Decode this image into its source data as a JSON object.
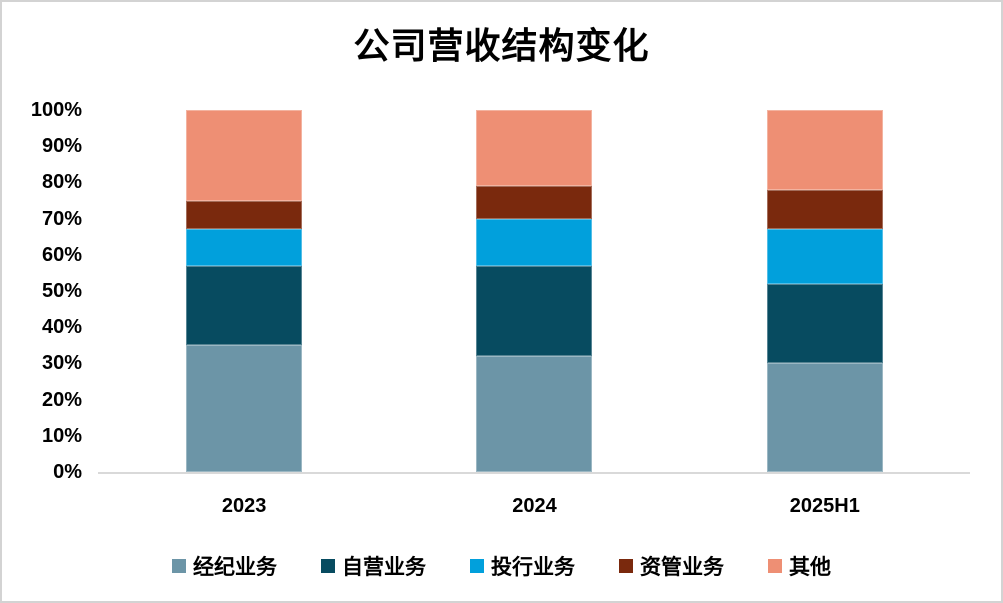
{
  "chart_data": {
    "type": "bar",
    "stacked": true,
    "percent_stacked": true,
    "title": "公司营收结构变化",
    "categories": [
      "2023",
      "2024",
      "2025H1"
    ],
    "series": [
      {
        "name": "经纪业务",
        "color": "#6C95A7",
        "values": [
          35,
          32,
          30
        ]
      },
      {
        "name": "自营业务",
        "color": "#074B60",
        "values": [
          22,
          25,
          22
        ]
      },
      {
        "name": "投行业务",
        "color": "#01A0DC",
        "values": [
          10,
          13,
          15
        ]
      },
      {
        "name": "资管业务",
        "color": "#7A290D",
        "values": [
          8,
          9,
          11
        ]
      },
      {
        "name": "其他",
        "color": "#EE8F74",
        "values": [
          25,
          21,
          22
        ]
      }
    ],
    "xlabel": "",
    "ylabel": "",
    "ylim": [
      0,
      100
    ],
    "y_tick_step": 10,
    "y_ticks": [
      "0%",
      "10%",
      "20%",
      "30%",
      "40%",
      "50%",
      "60%",
      "70%",
      "80%",
      "90%",
      "100%"
    ],
    "grid": false,
    "legend_position": "bottom",
    "axis_line_color": "#d9d9d9",
    "background_color": "#ffffff",
    "border_color": "#d3d3d3",
    "text_color": "#000000"
  }
}
